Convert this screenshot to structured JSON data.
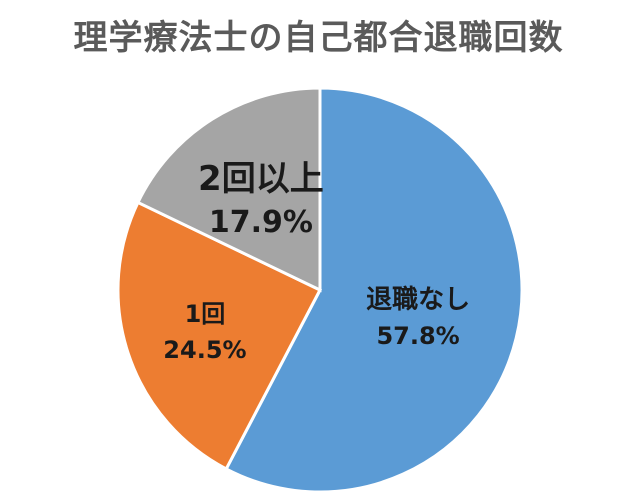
{
  "chart_data": {
    "type": "pie",
    "title": "理学療法士の自己都合退職回数",
    "start_angle_deg": 0,
    "direction": "clockwise",
    "legend": "none",
    "slices": [
      {
        "label": "退職なし",
        "value": 57.8,
        "value_label": "57.8%",
        "color": "#5b9bd5"
      },
      {
        "label": "1回",
        "value": 24.5,
        "value_label": "24.5%",
        "color": "#ed7d31"
      },
      {
        "label": "2回以上",
        "value": 17.9,
        "value_label": "17.9%",
        "color": "#a5a5a5"
      }
    ]
  }
}
